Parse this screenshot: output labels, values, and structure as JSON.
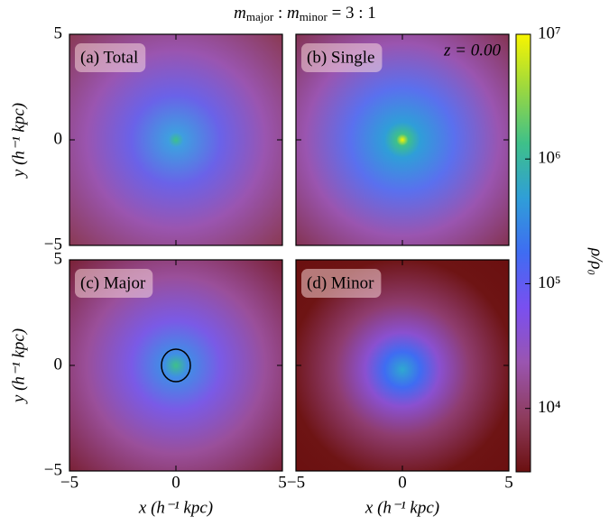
{
  "chart_data": {
    "type": "heatmap",
    "title_parts": [
      "m",
      "major",
      " : ",
      "m",
      "minor",
      " = 3 : 1"
    ],
    "xlabel": "x (h⁻¹ kpc)",
    "ylabel": "y (h⁻¹ kpc)",
    "xlim": [
      -5,
      5
    ],
    "ylim": [
      -5,
      5
    ],
    "xticks": [
      {
        "value": -5,
        "label": "−5"
      },
      0,
      5
    ],
    "yticks": [
      {
        "value": -5,
        "label": "−5"
      },
      0,
      5
    ],
    "panels": [
      {
        "label": "(a) Total"
      },
      {
        "label": "(b) Single"
      },
      {
        "label": "(c) Major"
      },
      {
        "label": "(d) Minor"
      }
    ],
    "annotation": "z = 0.00",
    "colorbar": {
      "label": "ρ/ρ₀",
      "log": true,
      "lim": [
        3100,
        10000000
      ],
      "ticks": [
        {
          "value": 10000,
          "label": "10⁴"
        },
        {
          "value": 100000,
          "label": "10⁵"
        },
        {
          "value": 1000000,
          "label": "10⁶"
        },
        {
          "value": 10000000,
          "label": "10⁷"
        }
      ],
      "colors": [
        "#6b1010",
        "#8e3c5e",
        "#9a55b0",
        "#7a4ff0",
        "#3f6cf2",
        "#2f9ed8",
        "#3ec08a",
        "#9ad840",
        "#f8f500"
      ]
    }
  }
}
